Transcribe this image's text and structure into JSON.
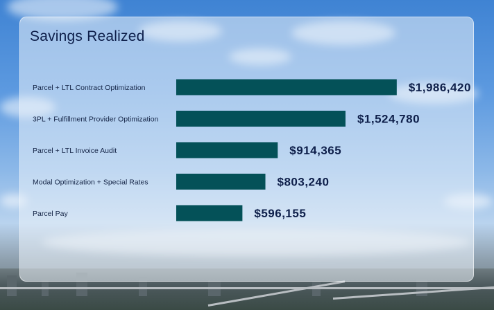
{
  "chart_data": {
    "type": "bar",
    "orientation": "horizontal",
    "title": "Savings Realized",
    "categories": [
      "Parcel + LTL Contract Optimization",
      "3PL + Fulfillment Provider Optimization",
      "Parcel + LTL Invoice Audit",
      "Modal Optimization + Special Rates",
      "Parcel Pay"
    ],
    "values": [
      1986420,
      1524780,
      914365,
      803240,
      596155
    ],
    "value_labels": [
      "$1,986,420",
      "$1,524,780",
      "$914,365",
      "$803,240",
      "$596,155"
    ],
    "xlim": [
      0,
      2000000
    ],
    "grid": false,
    "bar_color": "#045158"
  },
  "colors": {
    "bar": "#045158",
    "text": "#0e1f4a"
  }
}
